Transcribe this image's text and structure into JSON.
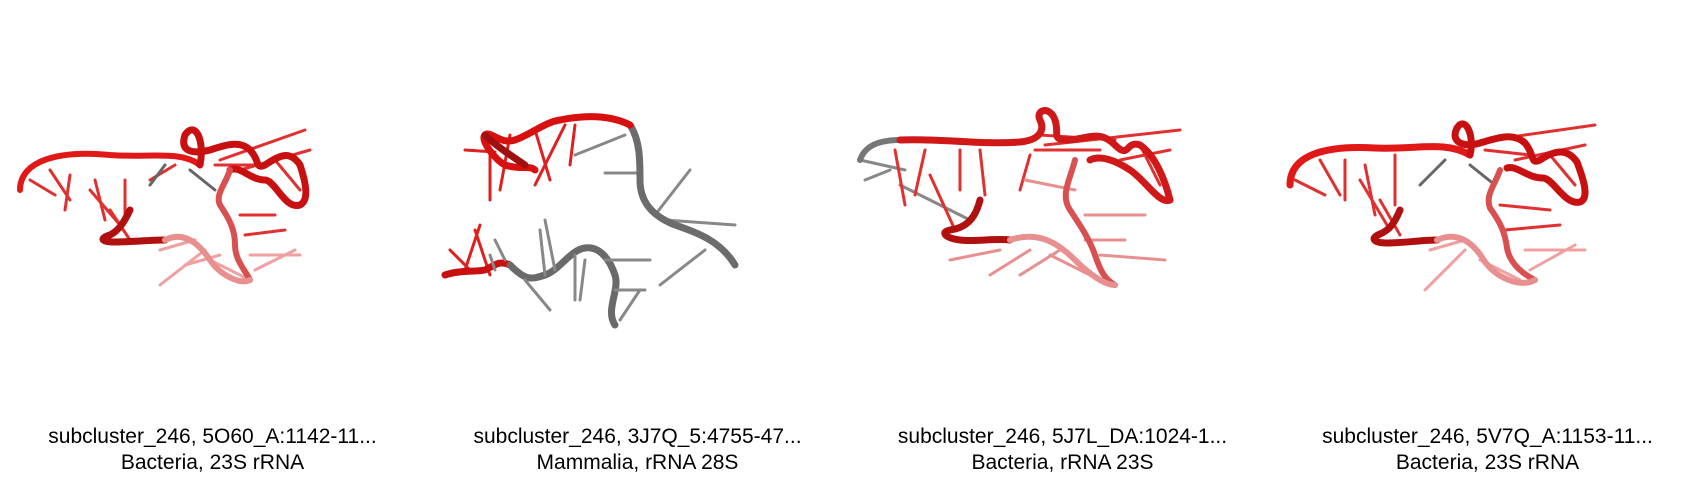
{
  "panels": [
    {
      "line1": "subcluster_246, 5O60_A:1142-11...",
      "line2": "Bacteria, 23S rRNA",
      "image": "rna-cartoon-red"
    },
    {
      "line1": "subcluster_246, 3J7Q_5:4755-47...",
      "line2": "Mammalia, rRNA 28S",
      "image": "rna-cartoon-red-gray"
    },
    {
      "line1": "subcluster_246, 5J7L_DA:1024-1...",
      "line2": "Bacteria, rRNA 23S",
      "image": "rna-cartoon-red"
    },
    {
      "line1": "subcluster_246, 5V7Q_A:1153-11...",
      "line2": "Bacteria, 23S rRNA",
      "image": "rna-cartoon-red"
    }
  ],
  "colors": {
    "highlight": "#e01010",
    "dark_red": "#a00000",
    "context": "#707070"
  }
}
